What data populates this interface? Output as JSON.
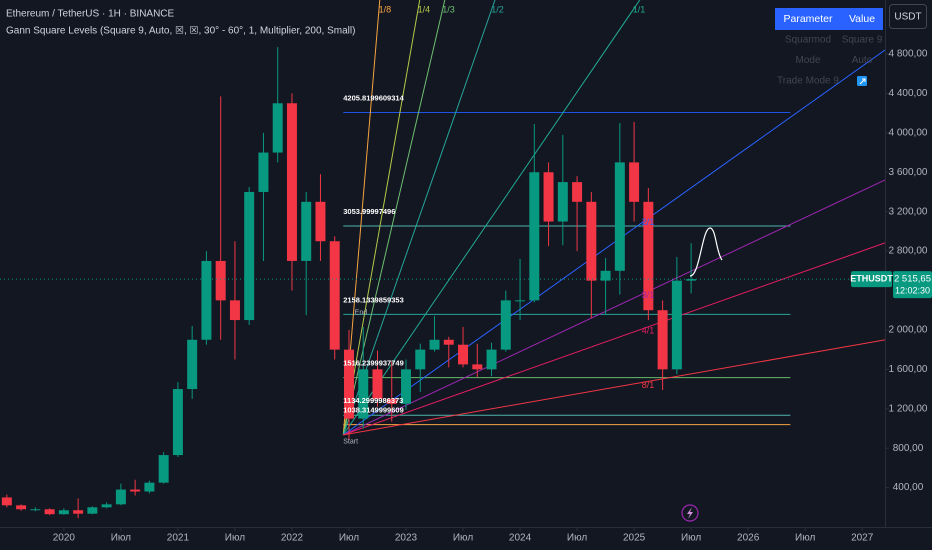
{
  "chart_data": {
    "type": "candlestick",
    "title": "Ethereum / TetherUS · 1H · BINANCE",
    "subtitle": "Gann Square Levels (Square 9, Auto, ☒, ☒, 30° - 60°, 1, Multiplier, 200, Small)",
    "x": [
      2019.5,
      2019.625,
      2019.75,
      2019.875,
      2020.0,
      2020.125,
      2020.25,
      2020.375,
      2020.5,
      2020.625,
      2020.75,
      2020.875,
      2021.0,
      2021.125,
      2021.25,
      2021.375,
      2021.5,
      2021.625,
      2021.75,
      2021.875,
      2022.0,
      2022.125,
      2022.25,
      2022.375,
      2022.5,
      2022.625,
      2022.75,
      2022.875,
      2023.0,
      2023.125,
      2023.25,
      2023.375,
      2023.5,
      2023.625,
      2023.75,
      2023.875,
      2024.0,
      2024.125,
      2024.25,
      2024.375,
      2024.5,
      2024.625,
      2024.75,
      2024.875,
      2025.0,
      2025.125,
      2025.25,
      2025.375,
      2025.5
    ],
    "open": [
      300,
      220,
      180,
      180,
      130,
      170,
      135,
      200,
      230,
      380,
      360,
      450,
      730,
      1400,
      1900,
      2700,
      2300,
      2100,
      3400,
      3800,
      4300,
      2700,
      3300,
      2900,
      1800,
      1100,
      1600,
      1300,
      1250,
      1600,
      1800,
      1900,
      1850,
      1650,
      1600,
      1800,
      2300,
      2300,
      3600,
      3100,
      3500,
      3300,
      2500,
      2600,
      3700,
      3300,
      2200,
      1600,
      2500
    ],
    "high": [
      330,
      230,
      200,
      190,
      190,
      290,
      210,
      250,
      440,
      480,
      470,
      760,
      1470,
      2040,
      2800,
      4370,
      2900,
      3450,
      4000,
      4870,
      4400,
      3400,
      3580,
      2950,
      2000,
      2030,
      1790,
      1680,
      1700,
      1860,
      2140,
      1930,
      2030,
      1860,
      1870,
      2400,
      2720,
      4090,
      3700,
      3980,
      3560,
      3400,
      2730,
      4100,
      4110,
      3440,
      2300,
      2740,
      2880
    ],
    "low": [
      200,
      165,
      160,
      120,
      125,
      90,
      130,
      190,
      220,
      320,
      340,
      440,
      710,
      1300,
      1850,
      1900,
      1700,
      2050,
      2700,
      3700,
      2400,
      2150,
      2700,
      1700,
      880,
      1000,
      1220,
      1070,
      1190,
      1370,
      1780,
      1620,
      1620,
      1520,
      1530,
      1780,
      2100,
      2280,
      2850,
      2860,
      2800,
      2120,
      2150,
      2360,
      3100,
      2100,
      1390,
      1550,
      2370
    ],
    "close": [
      220,
      180,
      180,
      130,
      170,
      135,
      200,
      230,
      380,
      360,
      450,
      730,
      1400,
      1900,
      2700,
      2300,
      2100,
      3400,
      3800,
      4300,
      2700,
      3300,
      2900,
      1800,
      1100,
      1600,
      1300,
      1250,
      1600,
      1800,
      1900,
      1850,
      1650,
      1600,
      1800,
      2300,
      2300,
      3600,
      3100,
      3500,
      3300,
      2500,
      2600,
      3700,
      3300,
      2200,
      1600,
      2500,
      2515.65
    ],
    "up_color": "#089981",
    "down_color": "#f23645",
    "xlim": [
      2019.44,
      2027.2
    ],
    "xticks": [
      {
        "value": 2020,
        "label": "2020"
      },
      {
        "value": 2020.5,
        "label": "Июл"
      },
      {
        "value": 2021,
        "label": "2021"
      },
      {
        "value": 2021.5,
        "label": "Июл"
      },
      {
        "value": 2022,
        "label": "2022"
      },
      {
        "value": 2022.5,
        "label": "Июл"
      },
      {
        "value": 2023,
        "label": "2023"
      },
      {
        "value": 2023.5,
        "label": "Июл"
      },
      {
        "value": 2024,
        "label": "2024"
      },
      {
        "value": 2024.5,
        "label": "Июл"
      },
      {
        "value": 2025,
        "label": "2025"
      },
      {
        "value": 2025.5,
        "label": "Июл"
      },
      {
        "value": 2026,
        "label": "2026"
      },
      {
        "value": 2026.5,
        "label": "Июл"
      },
      {
        "value": 2027,
        "label": "2027"
      }
    ],
    "ylim": [
      0,
      5348
    ],
    "yticks": [
      {
        "value": 400,
        "label": "400,00"
      },
      {
        "value": 800,
        "label": "800,00"
      },
      {
        "value": 1200,
        "label": "1 200,00"
      },
      {
        "value": 1600,
        "label": "1 600,00"
      },
      {
        "value": 2000,
        "label": "2 000,00"
      },
      {
        "value": 2800,
        "label": "2 800,00"
      },
      {
        "value": 3200,
        "label": "3 200,00"
      },
      {
        "value": 3600,
        "label": "3 600,00"
      },
      {
        "value": 4000,
        "label": "4 000,00"
      },
      {
        "value": 4400,
        "label": "4 400,00"
      },
      {
        "value": 4800,
        "label": "4 800,00"
      }
    ],
    "grid": false,
    "last_price": {
      "value": 2515.65,
      "label": "2 515,65",
      "symbol": "ETHUSDT",
      "countdown": "12:02:30",
      "color": "#089981"
    },
    "gann": {
      "start": {
        "x": 2022.45,
        "value": 935,
        "label": "Start"
      },
      "end": {
        "x": 2022.55,
        "value": 2173,
        "label": "End"
      },
      "level_span": [
        2022.45,
        2026.37
      ],
      "levels": [
        {
          "value": 4205.8199609314,
          "label": "4205.8199609314",
          "color": "#1e53e5"
        },
        {
          "value": 3053.99997496,
          "label": "3053.99997496",
          "color": "#4db6ac"
        },
        {
          "value": 2158.1339859353,
          "label": "2158.1339859353",
          "color": "#26a69a"
        },
        {
          "value": 1516.2399937749,
          "label": "1516.2399937749",
          "color": "#66bb6a"
        },
        {
          "value": 1134.2999986373,
          "label": "1134.2999986373",
          "color": "#4db6ac"
        },
        {
          "value": 1038.3149999609,
          "label": "1038.3149999609",
          "color": "#f7a440"
        }
      ],
      "fan": [
        {
          "label": "1/8",
          "color": "#f7a440",
          "end": [
            2022.77,
            5348
          ]
        },
        {
          "label": "1/4",
          "color": "#b5c948",
          "end": [
            2023.12,
            5348
          ]
        },
        {
          "label": "1/3",
          "color": "#6fbf73",
          "end": [
            2023.34,
            5348
          ]
        },
        {
          "label": "1/2",
          "color": "#26a69a",
          "end": [
            2023.78,
            5348
          ]
        },
        {
          "label": "1/1",
          "color": "#22ab94",
          "end": [
            2025.05,
            5348
          ]
        },
        {
          "label": "2/1",
          "color": "#2962ff",
          "end": [
            2027.2,
            4840
          ]
        },
        {
          "label": "3/1",
          "color": "#9c27b0",
          "end": [
            2027.2,
            3522
          ]
        },
        {
          "label": "4/1",
          "color": "#e91e63",
          "end": [
            2027.2,
            2883
          ]
        },
        {
          "label": "8/1",
          "color": "#f23645",
          "end": [
            2027.2,
            1899
          ]
        }
      ]
    }
  },
  "panel": {
    "currency": "USDT",
    "table": {
      "header": [
        "Parameter",
        "Value"
      ],
      "rows": [
        [
          "Squarmod",
          "Square 9"
        ],
        [
          "Mode",
          "Auto"
        ],
        [
          "Trade Mode 9"
        ]
      ]
    }
  }
}
